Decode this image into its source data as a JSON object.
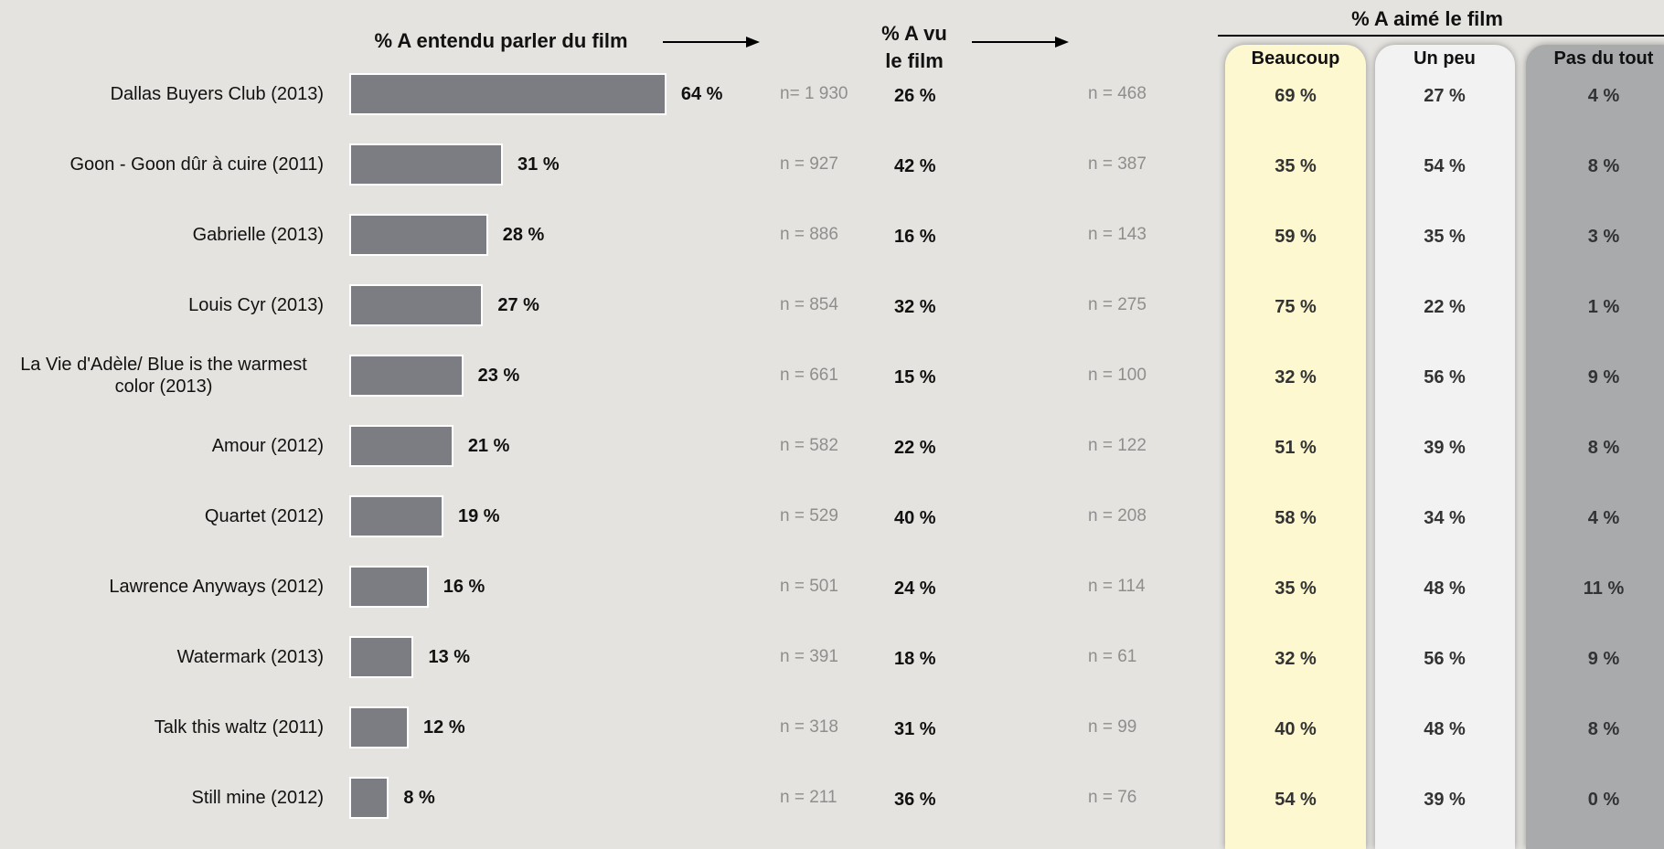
{
  "chart_data": {
    "type": "bar",
    "title": "% A entendu parler du film",
    "categories": [
      "Dallas Buyers Club (2013)",
      "Goon - Goon dûr à cuire (2011)",
      "Gabrielle (2013)",
      "Louis Cyr (2013)",
      "La Vie d'Adèle/ Blue is the warmest color (2013)",
      "Amour (2012)",
      "Quartet (2012)",
      "Lawrence Anyways (2012)",
      "Watermark (2013)",
      "Talk this waltz (2011)",
      "Still mine (2012)"
    ],
    "values": [
      64,
      31,
      28,
      27,
      23,
      21,
      19,
      16,
      13,
      12,
      8
    ],
    "value_labels": [
      "64 %",
      "31 %",
      "28 %",
      "27 %",
      "23 %",
      "21 %",
      "19 %",
      "16 %",
      "13 %",
      "12 %",
      "8 %"
    ],
    "color": "#7b7d82"
  },
  "table": {
    "heard_n": [
      "n= 1 930",
      "n = 927",
      "n = 886",
      "n = 854",
      "n = 661",
      "n = 582",
      "n = 529",
      "n = 501",
      "n = 391",
      "n = 318",
      "n = 211"
    ],
    "seen_title": "% A vu le film",
    "seen": [
      "26 %",
      "42 %",
      "16 %",
      "32 %",
      "15 %",
      "22 %",
      "40 %",
      "24 %",
      "18 %",
      "31 %",
      "36 %"
    ],
    "seen_n": [
      "n = 468",
      "n = 387",
      "n = 143",
      "n = 275",
      "n = 100",
      "n = 122",
      "n = 208",
      "n = 114",
      "n = 61",
      "n = 99",
      "n = 76"
    ],
    "liked_title": "% A aimé le film",
    "liked_columns": [
      "Beaucoup",
      "Un peu",
      "Pas du tout"
    ],
    "liked": [
      [
        "69 %",
        "27 %",
        "4 %"
      ],
      [
        "35 %",
        "54 %",
        "8 %"
      ],
      [
        "59 %",
        "35 %",
        "3 %"
      ],
      [
        "75 %",
        "22 %",
        "1 %"
      ],
      [
        "32 %",
        "56 %",
        "9 %"
      ],
      [
        "51 %",
        "39 %",
        "8 %"
      ],
      [
        "58 %",
        "34 %",
        "4 %"
      ],
      [
        "35 %",
        "48 %",
        "11 %"
      ],
      [
        "32 %",
        "56 %",
        "9 %"
      ],
      [
        "40 %",
        "48 %",
        "8 %"
      ],
      [
        "54 %",
        "39 %",
        "0 %"
      ]
    ]
  }
}
